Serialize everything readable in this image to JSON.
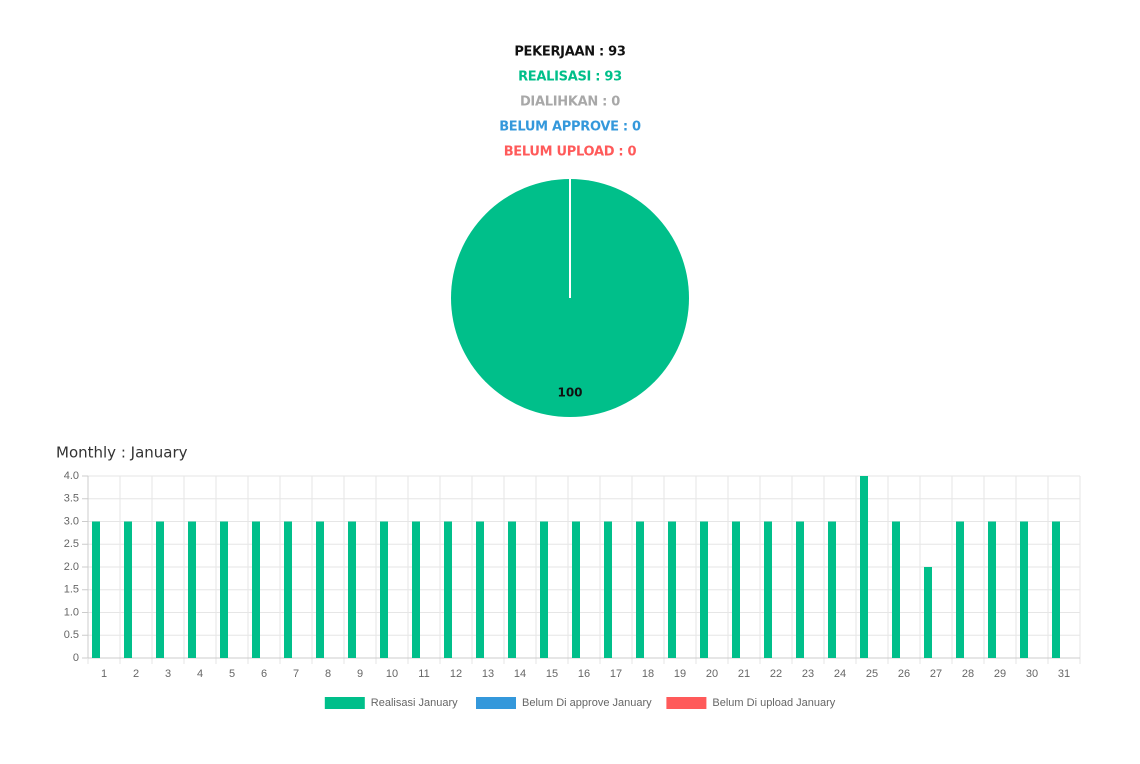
{
  "summary": [
    {
      "text": "PEKERJAAN : 93",
      "color": "#111111"
    },
    {
      "text": "REALISASI : 93",
      "color": "#00bf8a"
    },
    {
      "text": "DIALIHKAN : 0",
      "color": "#a8a8a8"
    },
    {
      "text": "BELUM APPROVE : 0",
      "color": "#3498db"
    },
    {
      "text": "BELUM UPLOAD : 0",
      "color": "#ff5a5a"
    }
  ],
  "chart_data": [
    {
      "type": "pie",
      "values": [
        100
      ],
      "colors": [
        "#00bf8a"
      ]
    },
    {
      "type": "bar",
      "title": "Monthly : January",
      "categories": [
        "1",
        "2",
        "3",
        "4",
        "5",
        "6",
        "7",
        "8",
        "9",
        "10",
        "11",
        "12",
        "13",
        "14",
        "15",
        "16",
        "17",
        "18",
        "19",
        "20",
        "21",
        "22",
        "23",
        "24",
        "25",
        "26",
        "27",
        "28",
        "29",
        "30",
        "31"
      ],
      "series": [
        {
          "name": "Realisasi January",
          "color": "#00bf8a",
          "values": [
            3,
            3,
            3,
            3,
            3,
            3,
            3,
            3,
            3,
            3,
            3,
            3,
            3,
            3,
            3,
            3,
            3,
            3,
            3,
            3,
            3,
            3,
            3,
            3,
            4,
            3,
            2,
            3,
            3,
            3,
            3
          ]
        },
        {
          "name": "Belum Di approve January",
          "color": "#3498db",
          "values": [
            0,
            0,
            0,
            0,
            0,
            0,
            0,
            0,
            0,
            0,
            0,
            0,
            0,
            0,
            0,
            0,
            0,
            0,
            0,
            0,
            0,
            0,
            0,
            0,
            0,
            0,
            0,
            0,
            0,
            0,
            0
          ]
        },
        {
          "name": "Belum Di upload January",
          "color": "#ff5a5a",
          "values": [
            0,
            0,
            0,
            0,
            0,
            0,
            0,
            0,
            0,
            0,
            0,
            0,
            0,
            0,
            0,
            0,
            0,
            0,
            0,
            0,
            0,
            0,
            0,
            0,
            0,
            0,
            0,
            0,
            0,
            0,
            0
          ]
        }
      ],
      "ylim": [
        0,
        4
      ],
      "yticks": [
        0,
        0.5,
        {
          "value": 1,
          "label": "1.0"
        },
        1.5,
        {
          "value": 2,
          "label": "2.0"
        },
        2.5,
        {
          "value": 3,
          "label": "3.0"
        },
        3.5,
        {
          "value": 4,
          "label": "4.0"
        }
      ],
      "grid": true,
      "legend": "bottom"
    }
  ]
}
